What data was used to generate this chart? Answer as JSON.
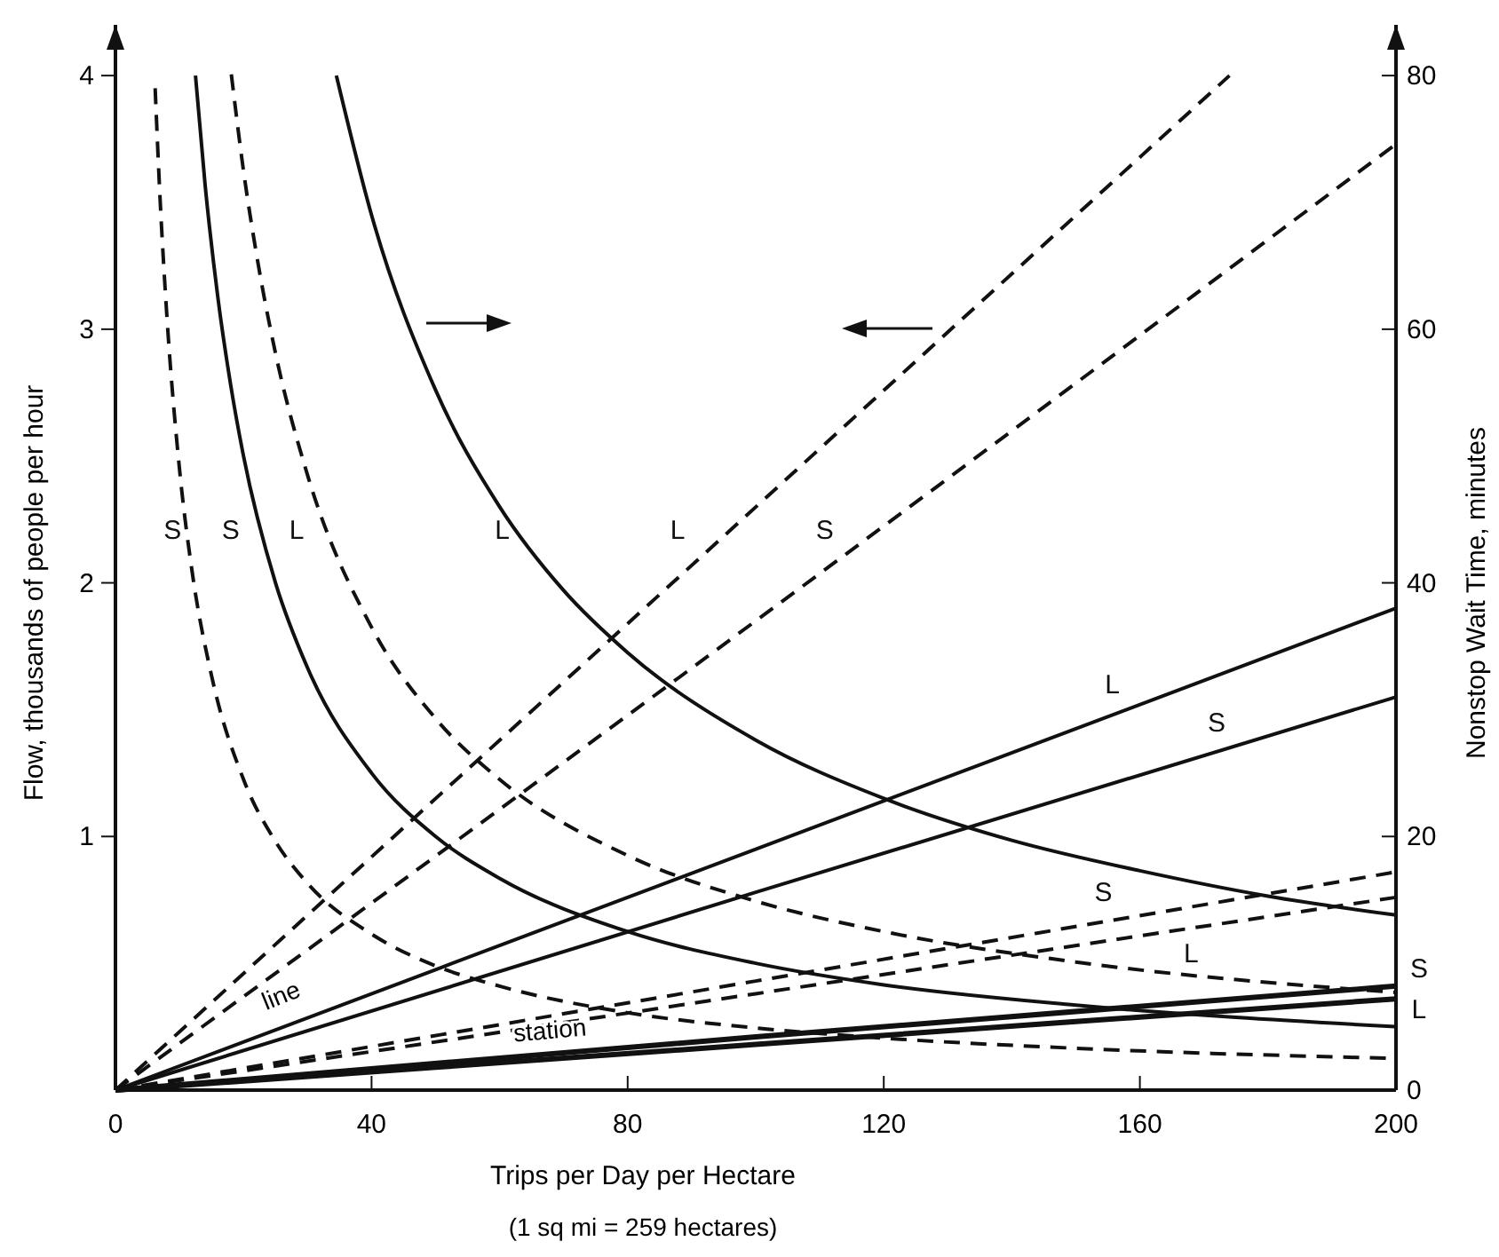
{
  "chart_data": {
    "type": "line",
    "xlabel": "Trips per Day per Hectare",
    "ylabel": "Flow, thousands of people per hour",
    "y2label": "Nonstop Wait Time, minutes",
    "xlim": [
      0,
      200
    ],
    "xticks": [
      0,
      40,
      80,
      120,
      160,
      200
    ],
    "ylim": [
      0,
      4.2
    ],
    "yticks": [
      1,
      2,
      3,
      4
    ],
    "y2lim": [
      0,
      84
    ],
    "y2ticks": [
      0,
      20,
      40,
      60,
      80
    ],
    "series": [
      {
        "name": "S",
        "color": "#111111",
        "axis": "y2",
        "line_style": "dashed",
        "x": [
          6.2,
          7,
          8,
          10,
          12,
          15,
          20,
          25,
          30,
          40,
          50,
          60,
          80,
          100,
          120,
          150,
          200
        ],
        "values": [
          79,
          70,
          61.3,
          49,
          40.8,
          32.7,
          24.5,
          19.6,
          16.3,
          12.3,
          9.8,
          8.2,
          6.1,
          4.9,
          4.1,
          3.3,
          2.5
        ]
      },
      {
        "name": "S",
        "color": "#111111",
        "axis": "y2",
        "line_style": "solid",
        "x": [
          12.5,
          14,
          16,
          18,
          20,
          25,
          30,
          40,
          50,
          60,
          80,
          100,
          120,
          150,
          200
        ],
        "values": [
          80,
          71.4,
          62.5,
          55.6,
          50,
          40,
          33.3,
          25,
          20,
          16.7,
          12.5,
          10,
          8.3,
          6.7,
          5
        ]
      },
      {
        "name": "L",
        "color": "#111111",
        "axis": "y2",
        "line_style": "dashed",
        "x": [
          18.1,
          20,
          22,
          25,
          30,
          40,
          50,
          60,
          80,
          100,
          120,
          150,
          200
        ],
        "values": [
          80.1,
          72.5,
          66,
          58.1,
          48.5,
          36.5,
          29.3,
          24.5,
          18.5,
          14.9,
          12.5,
          10.1,
          7.7
        ]
      },
      {
        "name": "L",
        "color": "#111111",
        "axis": "y2",
        "line_style": "solid",
        "x": [
          34.5,
          40,
          50,
          60,
          70,
          80,
          100,
          120,
          140,
          160,
          180,
          200
        ],
        "values": [
          80,
          69,
          55.2,
          46,
          39.4,
          34.5,
          27.6,
          23,
          19.7,
          17.3,
          15.3,
          13.8
        ]
      },
      {
        "name": "L",
        "color": "#111111",
        "line_style": "dashed",
        "x": [
          0,
          87,
          174
        ],
        "values": [
          0,
          2.0,
          4.0
        ]
      },
      {
        "name": "S",
        "color": "#111111",
        "line_style": "dashed",
        "x": [
          0,
          100,
          200
        ],
        "values": [
          0,
          1.85,
          3.73
        ]
      },
      {
        "name": "L",
        "color": "#111111",
        "line_style": "solid",
        "x": [
          0,
          100,
          200
        ],
        "values": [
          0,
          0.95,
          1.9
        ]
      },
      {
        "name": "S",
        "color": "#111111",
        "line_style": "solid",
        "x": [
          0,
          100,
          200
        ],
        "values": [
          0,
          0.78,
          1.55
        ]
      },
      {
        "name": "S",
        "color": "#111111",
        "line_style": "dashed",
        "x": [
          0,
          100,
          200
        ],
        "values": [
          0,
          0.43,
          0.86
        ]
      },
      {
        "name": "L",
        "color": "#111111",
        "line_style": "dashed",
        "x": [
          0,
          100,
          200
        ],
        "values": [
          0,
          0.38,
          0.76
        ]
      },
      {
        "name": "S",
        "color": "#111111",
        "line_style": "solid",
        "x": [
          0,
          100,
          200
        ],
        "values": [
          0,
          0.21,
          0.41
        ]
      },
      {
        "name": "L",
        "color": "#111111",
        "line_style": "solid",
        "x": [
          0,
          100,
          200
        ],
        "values": [
          0,
          0.18,
          0.36
        ]
      }
    ],
    "annotations": [
      "line",
      "station",
      "(1 sq mi = 259 hectares)"
    ]
  }
}
